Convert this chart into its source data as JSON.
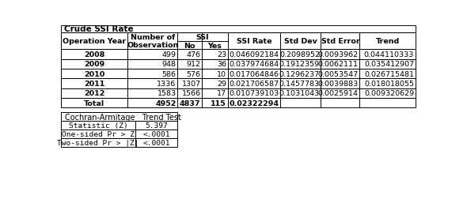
{
  "title": "Crude SSI Rate",
  "main_table": {
    "rows": [
      [
        "2008",
        "499",
        "476",
        "23",
        "0.046092184",
        "0.2098952",
        "0.0093962",
        "0.044110333"
      ],
      [
        "2009",
        "948",
        "912",
        "36",
        "0.037974684",
        "0.1912359",
        "0.0062111",
        "0.035412907"
      ],
      [
        "2010",
        "586",
        "576",
        "10",
        "0.017064846",
        "0.1296237",
        "0.0053547",
        "0.026715481"
      ],
      [
        "2011",
        "1336",
        "1307",
        "29",
        "0.021706587",
        "0.1457783",
        "0.0039883",
        "0.018018055"
      ],
      [
        "2012",
        "1583",
        "1566",
        "17",
        "0.010739103",
        "0.1031043",
        "0.0025914",
        "0.009320629"
      ],
      [
        "Total",
        "4952",
        "4837",
        "115",
        "0.02322294",
        "",
        "",
        ""
      ]
    ]
  },
  "stat_table": {
    "title": "Cochran-Armitage   Trend Test",
    "rows": [
      [
        "Statistic (Z)",
        "5.397"
      ],
      [
        "One-sided Pr > Z",
        "<.0001"
      ],
      [
        "Two-sided Pr > |Z|",
        "<.0001"
      ]
    ]
  },
  "bg_color": "#ffffff",
  "font_size": 6.8,
  "title_fontsize": 7.5
}
